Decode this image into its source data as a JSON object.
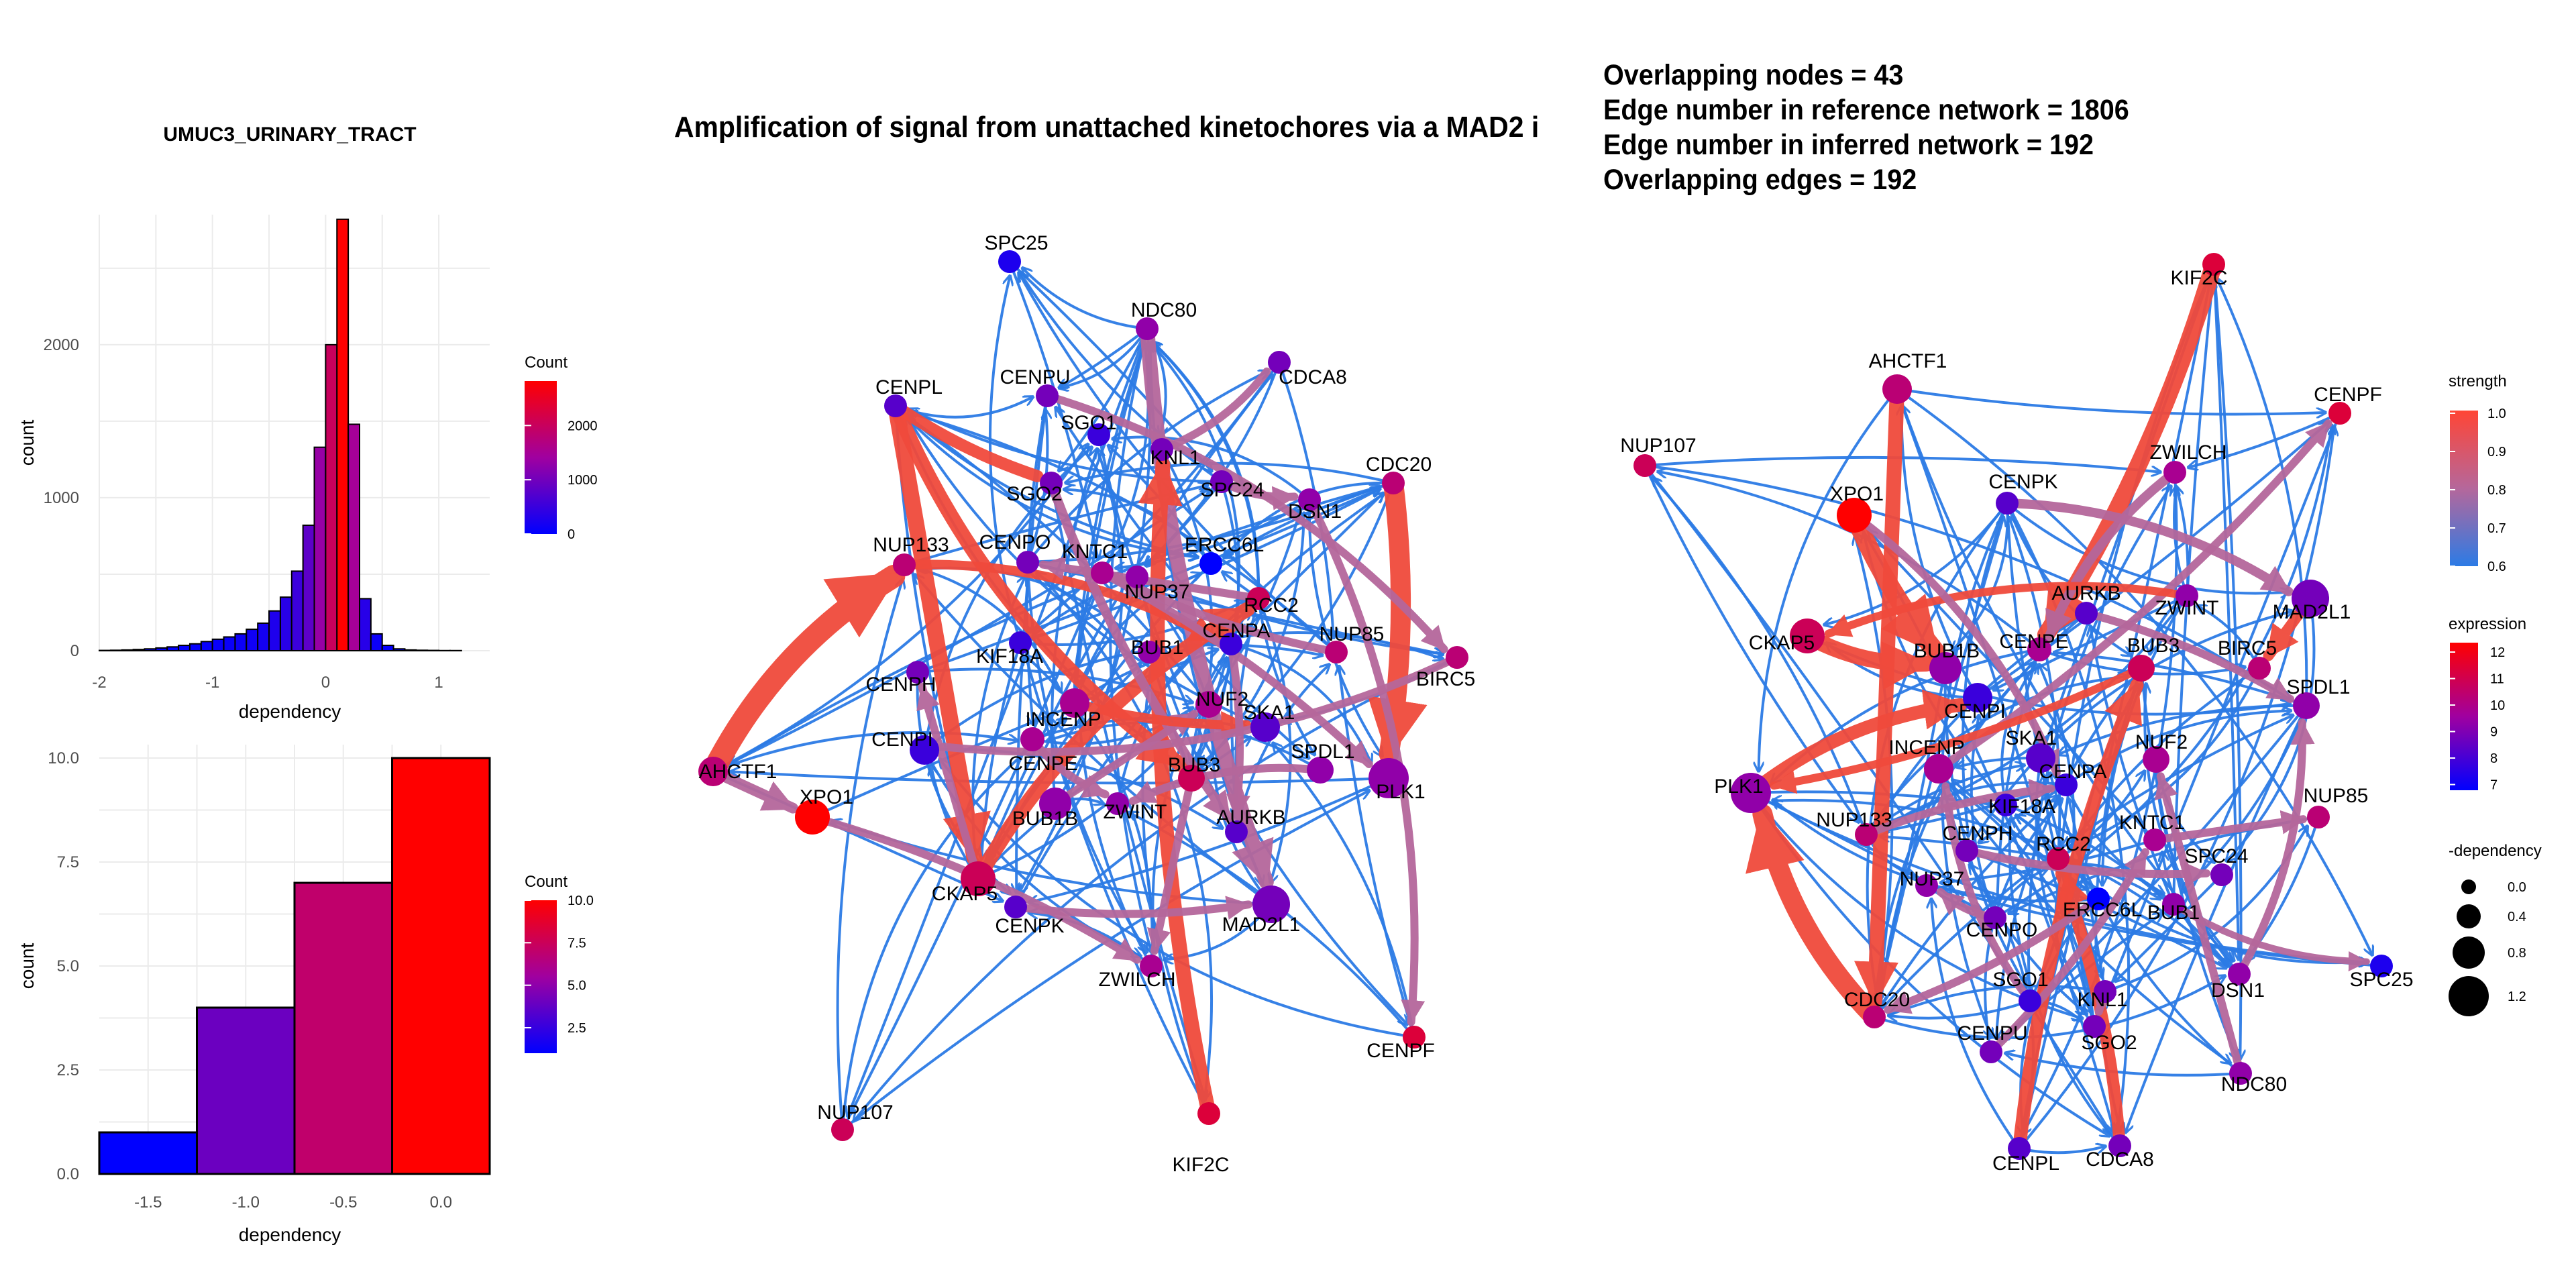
{
  "hist_title": "UMUC3_URINARY_TRACT",
  "network_title": "Amplification  of signal from unattached  kinetochores via a MAD2  i",
  "stats": [
    "Overlapping nodes = 43",
    "Edge number in reference network = 1806",
    "Edge number in inferred network = 192",
    "Overlapping edges = 192"
  ],
  "colors": {
    "low": "#0000ff",
    "mid": "#a000a0",
    "high": "#ff0000",
    "blue_edge": "#2c7be5",
    "mauve_edge": "#b5679b",
    "red_edge": "#f04a3c"
  },
  "chart_data": [
    {
      "type": "bar",
      "subtype": "histogram",
      "title": "UMUC3_URINARY_TRACT",
      "xlabel": "dependency",
      "ylabel": "count",
      "xlim": [
        -2,
        1.45
      ],
      "ylim": [
        0,
        2850
      ],
      "xticks": [
        "-2",
        "-1",
        "0",
        "1"
      ],
      "yticks": [
        "0",
        "1000",
        "2000"
      ],
      "bin_width": 0.1,
      "x_start": -2,
      "values": [
        2,
        3,
        5,
        8,
        12,
        18,
        25,
        35,
        45,
        60,
        75,
        90,
        110,
        140,
        180,
        260,
        350,
        520,
        820,
        1330,
        2000,
        2820,
        1480,
        340,
        110,
        35,
        12,
        5,
        3,
        2,
        1,
        1,
        0,
        0
      ],
      "legend": {
        "title": "Count",
        "ticks": [
          "0",
          "1000",
          "2000"
        ],
        "max": 2820
      }
    },
    {
      "type": "bar",
      "subtype": "histogram",
      "xlabel": "dependency",
      "ylabel": "count",
      "xlim": [
        -1.75,
        0.25
      ],
      "ylim": [
        0,
        10
      ],
      "xticks": [
        "-1.5",
        "-1.0",
        "-0.5",
        "0.0"
      ],
      "yticks": [
        "0.0",
        "2.5",
        "5.0",
        "7.5",
        "10.0"
      ],
      "categories": [
        "-1.5",
        "-1.0",
        "-0.5",
        "0.0"
      ],
      "values": [
        1,
        4,
        7,
        10
      ],
      "legend": {
        "title": "Count",
        "ticks": [
          "2.5",
          "5.0",
          "7.5",
          "10.0"
        ],
        "max": 10
      }
    },
    {
      "type": "network",
      "title": "Amplification  of signal from unattached  kinetochores via a MAD2  i",
      "nodes": [
        {
          "id": "SPC25",
          "e": 7.5
        },
        {
          "id": "NDC80",
          "e": 9.5
        },
        {
          "id": "CDCA8",
          "e": 9
        },
        {
          "id": "CENPL",
          "e": 8.5
        },
        {
          "id": "CENPU",
          "e": 9
        },
        {
          "id": "SGO1",
          "e": 8
        },
        {
          "id": "KNL1",
          "e": 9
        },
        {
          "id": "CDC20",
          "e": 10.5
        },
        {
          "id": "SPC24",
          "e": 9
        },
        {
          "id": "DSN1",
          "e": 9.5
        },
        {
          "id": "SGO2",
          "e": 9
        },
        {
          "id": "NUP133",
          "e": 10.5
        },
        {
          "id": "CENPO",
          "e": 9
        },
        {
          "id": "KNTC1",
          "e": 10
        },
        {
          "id": "ERCC6L",
          "e": 7
        },
        {
          "id": "NUP37",
          "e": 9.5
        },
        {
          "id": "RCC2",
          "e": 11
        },
        {
          "id": "CENPA",
          "e": 8
        },
        {
          "id": "NUP85",
          "e": 10.5
        },
        {
          "id": "KIF18A",
          "e": 8
        },
        {
          "id": "BUB1",
          "e": 9.5
        },
        {
          "id": "BIRC5",
          "e": 10.5
        },
        {
          "id": "CENPH",
          "e": 9
        },
        {
          "id": "NUF2",
          "e": 10
        },
        {
          "id": "INCENP",
          "e": 10
        },
        {
          "id": "SKA1",
          "e": 8.5
        },
        {
          "id": "CENPI",
          "e": 8
        },
        {
          "id": "SPDL1",
          "e": 9.5
        },
        {
          "id": "CENPE",
          "e": 10
        },
        {
          "id": "BUB3",
          "e": 11
        },
        {
          "id": "PLK1",
          "e": 9.5
        },
        {
          "id": "AHCTF1",
          "e": 10.5
        },
        {
          "id": "XPO1",
          "e": 12.5
        },
        {
          "id": "BUB1B",
          "e": 9.5
        },
        {
          "id": "ZWINT",
          "e": 9.5
        },
        {
          "id": "AURKB",
          "e": 8.5
        },
        {
          "id": "CKAP5",
          "e": 11
        },
        {
          "id": "CENPK",
          "e": 8.5
        },
        {
          "id": "MAD2L1",
          "e": 9
        },
        {
          "id": "ZWILCH",
          "e": 10
        },
        {
          "id": "CENPF",
          "e": 11.5
        },
        {
          "id": "NUP107",
          "e": 11
        },
        {
          "id": "KIF2C",
          "e": 11.5
        }
      ],
      "edge_count": 192
    },
    {
      "type": "network",
      "legend": {
        "strength": {
          "title": "strength",
          "ticks": [
            "1.0",
            "0.9",
            "0.8",
            "0.7",
            "0.6"
          ]
        },
        "expression": {
          "title": "expression",
          "ticks": [
            "12",
            "11",
            "10",
            "9",
            "8",
            "7"
          ]
        },
        "dependency": {
          "title": "-dependency",
          "ticks": [
            "0.0",
            "0.4",
            "0.8",
            "1.2"
          ]
        }
      }
    }
  ]
}
